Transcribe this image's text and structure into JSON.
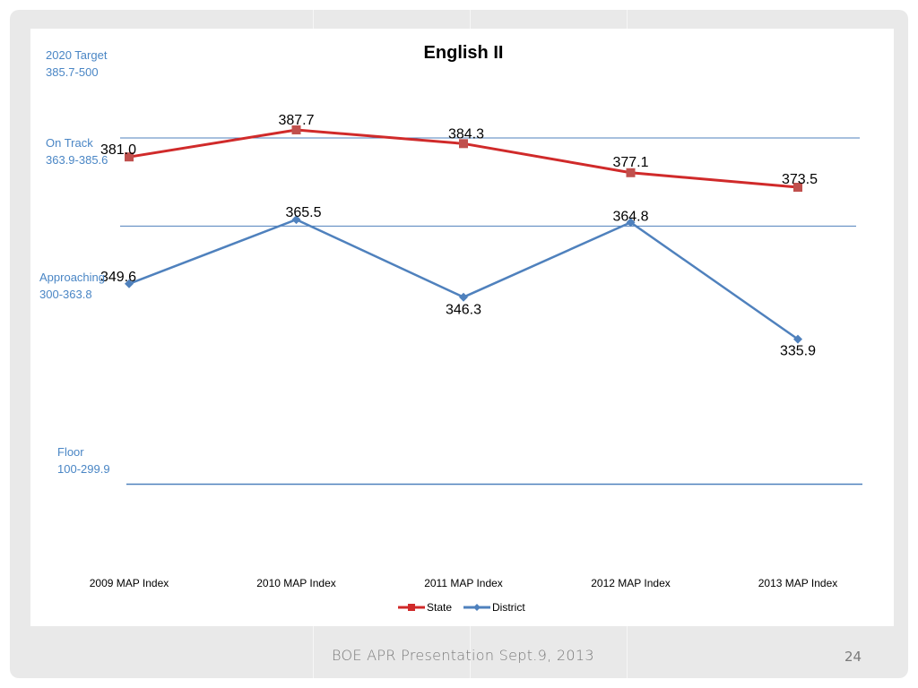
{
  "footer": {
    "text": "BOE APR Presentation Sept.9, 2013",
    "page_number": "24"
  },
  "bands": [
    {
      "name": "2020 Target",
      "range": "385.7-500"
    },
    {
      "name": "On Track",
      "range": "363.9-385.6"
    },
    {
      "name": "Approaching",
      "range": "300-363.8"
    },
    {
      "name": "Floor",
      "range": "100-299.9"
    }
  ],
  "colors": {
    "state": "#d02a2a",
    "district": "#4f81bd",
    "band_text": "#4a86c5",
    "band_line": "#4f81bd"
  },
  "chart_data": {
    "type": "line",
    "title": "English II",
    "categories": [
      "2009 MAP Index",
      "2010 MAP Index",
      "2011 MAP Index",
      "2012 MAP Index",
      "2013 MAP Index"
    ],
    "series": [
      {
        "name": "State",
        "marker": "square",
        "color": "#c0504d",
        "values": [
          381.0,
          387.7,
          384.3,
          377.1,
          373.5
        ],
        "labels": [
          "381.0",
          "387.7",
          "384.3",
          "377.1",
          "373.5"
        ]
      },
      {
        "name": "District",
        "marker": "diamond",
        "color": "#4f81bd",
        "values": [
          349.6,
          365.5,
          346.3,
          364.8,
          335.9
        ],
        "labels": [
          "349.6",
          "365.5",
          "346.3",
          "364.8",
          "335.9"
        ]
      }
    ],
    "band_thresholds": [
      385.7,
      363.9,
      300
    ],
    "legend_position": "bottom",
    "grid": false
  }
}
